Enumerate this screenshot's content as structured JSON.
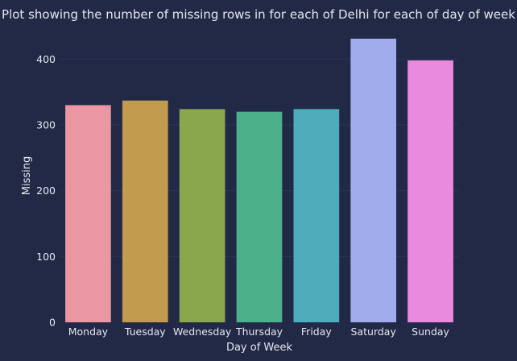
{
  "chart_data": {
    "type": "bar",
    "title": "Plot showing the number of missing rows in for each of Delhi for each of day of week",
    "xlabel": "Day of Week",
    "ylabel": "Missing",
    "categories": [
      "Monday",
      "Tuesday",
      "Wednesday",
      "Thursday",
      "Friday",
      "Saturday",
      "Sunday"
    ],
    "values": [
      330,
      337,
      324,
      320,
      324,
      431,
      398
    ],
    "colors": [
      "#ea96a3",
      "#c39b4e",
      "#8aa74e",
      "#4cb08b",
      "#4fadbb",
      "#a1acec",
      "#ea8adf"
    ],
    "ylim": [
      0,
      431
    ],
    "yticks": [
      0,
      100,
      200,
      300,
      400
    ],
    "grid": true,
    "background": "#212946",
    "grid_color": "#2a3459"
  }
}
